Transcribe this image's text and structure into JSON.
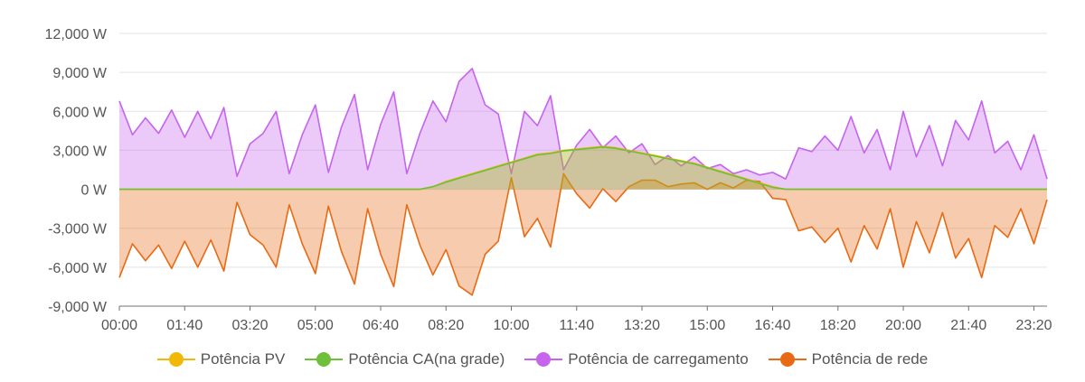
{
  "chart_data": {
    "type": "area",
    "x_unit": "time",
    "x_range": [
      "00:00",
      "23:40"
    ],
    "x_step_minutes": 20,
    "xticks": [
      "00:00",
      "01:40",
      "03:20",
      "05:00",
      "06:40",
      "08:20",
      "10:00",
      "11:40",
      "13:20",
      "15:00",
      "16:40",
      "18:20",
      "20:00",
      "21:40",
      "23:20"
    ],
    "yticks": [
      "12,000 W",
      "9,000 W",
      "6,000 W",
      "3,000 W",
      "0 W",
      "-3,000 W",
      "-6,000 W",
      "-9,000 W"
    ],
    "ylim": [
      -9000,
      12000
    ],
    "y_unit": "W",
    "grid": true,
    "legend_position": "bottom",
    "series": [
      {
        "name": "Potência PV",
        "color": "#f2b807",
        "values": [
          0,
          0,
          0,
          0,
          0,
          0,
          0,
          0,
          0,
          0,
          0,
          0,
          0,
          0,
          0,
          0,
          0,
          0,
          0,
          0,
          0,
          0,
          0,
          0,
          200,
          600,
          900,
          1200,
          1500,
          1800,
          2100,
          2400,
          2700,
          2800,
          3000,
          3100,
          3200,
          3300,
          3200,
          3000,
          2800,
          2600,
          2400,
          2200,
          2000,
          1700,
          1400,
          1100,
          800,
          500,
          200,
          0,
          0,
          0,
          0,
          0,
          0,
          0,
          0,
          0,
          0,
          0,
          0,
          0,
          0,
          0,
          0,
          0,
          0,
          0,
          0,
          0
        ]
      },
      {
        "name": "Potência CA(na grade)",
        "color": "#6ebf3a",
        "values": [
          0,
          0,
          0,
          0,
          0,
          0,
          0,
          0,
          0,
          0,
          0,
          0,
          0,
          0,
          0,
          0,
          0,
          0,
          0,
          0,
          0,
          0,
          0,
          0,
          200,
          550,
          850,
          1150,
          1450,
          1750,
          2050,
          2350,
          2650,
          2750,
          2950,
          3050,
          3150,
          3250,
          3150,
          2950,
          2750,
          2550,
          2350,
          2150,
          1950,
          1650,
          1350,
          1050,
          750,
          450,
          150,
          0,
          0,
          0,
          0,
          0,
          0,
          0,
          0,
          0,
          0,
          0,
          0,
          0,
          0,
          0,
          0,
          0,
          0,
          0,
          0,
          0
        ]
      },
      {
        "name": "Potência de carregamento",
        "color": "#c664ee",
        "values": [
          6800,
          4200,
          5500,
          4300,
          6100,
          4000,
          6000,
          3900,
          6300,
          1000,
          3500,
          4300,
          6000,
          1200,
          4200,
          6500,
          1300,
          4800,
          7300,
          1500,
          5000,
          7500,
          1200,
          4300,
          6800,
          5200,
          8300,
          9300,
          6500,
          5800,
          1200,
          6000,
          4900,
          7200,
          1500,
          3400,
          4600,
          3200,
          4100,
          2800,
          3500,
          1900,
          2600,
          1800,
          2500,
          1600,
          1900,
          1200,
          1500,
          1100,
          1300,
          800,
          3200,
          2900,
          4100,
          3000,
          5600,
          2800,
          4600,
          1500,
          6000,
          2500,
          4900,
          1800,
          5300,
          3800,
          6800,
          2800,
          3700,
          1500,
          4200,
          800
        ]
      },
      {
        "name": "Potência de rede",
        "color": "#e96a14",
        "values": [
          -6800,
          -4200,
          -5500,
          -4300,
          -6100,
          -4000,
          -6000,
          -3900,
          -6300,
          -1000,
          -3500,
          -4300,
          -6000,
          -1200,
          -4200,
          -6500,
          -1300,
          -4800,
          -7300,
          -1500,
          -5000,
          -7500,
          -1200,
          -4300,
          -6600,
          -4650,
          -7450,
          -8150,
          -5000,
          -4000,
          900,
          -3650,
          -2250,
          -4450,
          1200,
          -350,
          -1450,
          50,
          -950,
          200,
          700,
          700,
          200,
          400,
          500,
          0,
          500,
          100,
          700,
          600,
          -700,
          -800,
          -3200,
          -2900,
          -4100,
          -3000,
          -5600,
          -2800,
          -4600,
          -1500,
          -6000,
          -2500,
          -4900,
          -1800,
          -5300,
          -3800,
          -6800,
          -2800,
          -3700,
          -1500,
          -4200,
          -800
        ]
      }
    ]
  }
}
